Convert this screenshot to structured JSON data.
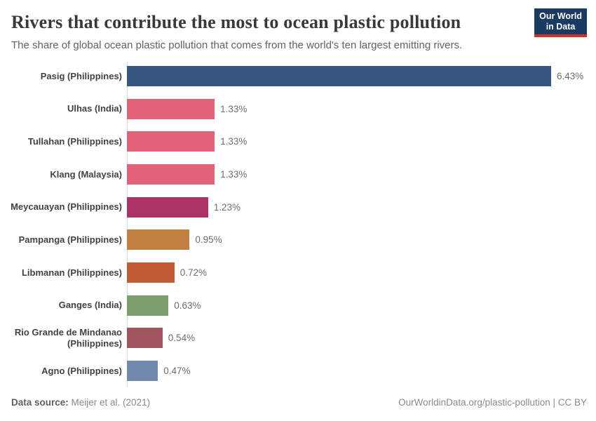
{
  "header": {
    "title": "Rivers that contribute the most to ocean plastic pollution",
    "subtitle": "The share of global ocean plastic pollution that comes from the world's ten largest emitting rivers.",
    "logo": {
      "line1": "Our World",
      "line2": "in Data",
      "background": "#1a3a62",
      "accent": "#d03028"
    }
  },
  "chart_data": {
    "type": "bar",
    "orientation": "horizontal",
    "title": "Rivers that contribute the most to ocean plastic pollution",
    "xlabel": "",
    "ylabel": "",
    "xlim": [
      0,
      6.43
    ],
    "grid": false,
    "legend": false,
    "categories": [
      "Pasig (Philippines)",
      "Ulhas (India)",
      "Tullahan (Philippines)",
      "Klang (Malaysia)",
      "Meycauayan (Philippines)",
      "Pampanga (Philippines)",
      "Libmanan (Philippines)",
      "Ganges (India)",
      "Rio Grande de Mindanao (Philippines)",
      "Agno (Philippines)"
    ],
    "values": [
      6.43,
      1.33,
      1.33,
      1.33,
      1.23,
      0.95,
      0.72,
      0.63,
      0.54,
      0.47
    ],
    "value_labels": [
      "6.43%",
      "1.33%",
      "1.33%",
      "1.33%",
      "1.23%",
      "0.95%",
      "0.72%",
      "0.63%",
      "0.54%",
      "0.47%"
    ],
    "colors": [
      "#35567d",
      "#e0637a",
      "#e0637a",
      "#e0637a",
      "#ad3366",
      "#c28142",
      "#c15c36",
      "#7b9e6b",
      "#a1565f",
      "#7289ae"
    ]
  },
  "footer": {
    "source_label": "Data source:",
    "source_value": " Meijer et al. (2021)",
    "right_text": "OurWorldinData.org/plastic-pollution | CC BY"
  }
}
